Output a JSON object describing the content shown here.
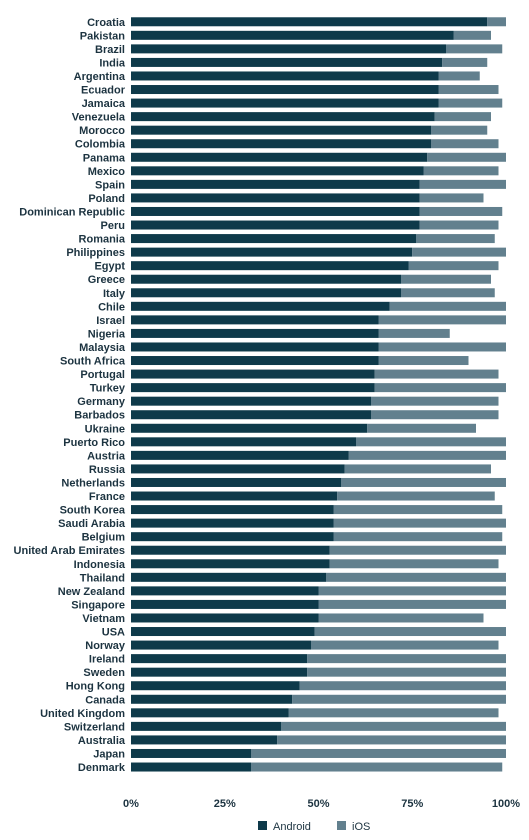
{
  "chart_data": {
    "type": "bar",
    "orientation": "horizontal",
    "stacked": true,
    "categories": [
      "Croatia",
      "Pakistan",
      "Brazil",
      "India",
      "Argentina",
      "Ecuador",
      "Jamaica",
      "Venezuela",
      "Morocco",
      "Colombia",
      "Panama",
      "Mexico",
      "Spain",
      "Poland",
      "Dominican Republic",
      "Peru",
      "Romania",
      "Philippines",
      "Egypt",
      "Greece",
      "Italy",
      "Chile",
      "Israel",
      "Nigeria",
      "Malaysia",
      "South Africa",
      "Portugal",
      "Turkey",
      "Germany",
      "Barbados",
      "Ukraine",
      "Puerto Rico",
      "Austria",
      "Russia",
      "Netherlands",
      "France",
      "South Korea",
      "Saudi Arabia",
      "Belgium",
      "United Arab Emirates",
      "Indonesia",
      "Thailand",
      "New Zealand",
      "Singapore",
      "Vietnam",
      "USA",
      "Norway",
      "Ireland",
      "Sweden",
      "Hong Kong",
      "Canada",
      "United Kingdom",
      "Switzerland",
      "Australia",
      "Japan",
      "Denmark"
    ],
    "series": [
      {
        "name": "Android",
        "color": "#0e3a4a",
        "values": [
          95,
          86,
          84,
          83,
          82,
          82,
          82,
          81,
          80,
          80,
          79,
          78,
          77,
          77,
          77,
          77,
          76,
          75,
          74,
          72,
          72,
          69,
          66,
          66,
          66,
          66,
          65,
          65,
          64,
          64,
          63,
          60,
          58,
          57,
          56,
          55,
          54,
          54,
          54,
          53,
          53,
          52,
          50,
          50,
          50,
          49,
          48,
          47,
          47,
          45,
          43,
          42,
          40,
          39,
          32,
          32
        ]
      },
      {
        "name": "iOS",
        "color": "#62808e",
        "values": [
          5,
          10,
          15,
          12,
          11,
          16,
          17,
          15,
          15,
          18,
          21,
          20,
          23,
          17,
          22,
          21,
          21,
          25,
          24,
          24,
          25,
          31,
          34,
          19,
          34,
          24,
          33,
          35,
          34,
          34,
          29,
          40,
          42,
          39,
          44,
          42,
          45,
          46,
          45,
          47,
          45,
          48,
          50,
          50,
          44,
          51,
          50,
          53,
          53,
          55,
          57,
          56,
          60,
          61,
          68,
          67
        ]
      }
    ],
    "xlim": [
      0,
      100
    ],
    "x_ticks": [
      "0%",
      "25%",
      "50%",
      "75%",
      "100%"
    ],
    "legend_position": "bottom-center",
    "grid": false
  }
}
